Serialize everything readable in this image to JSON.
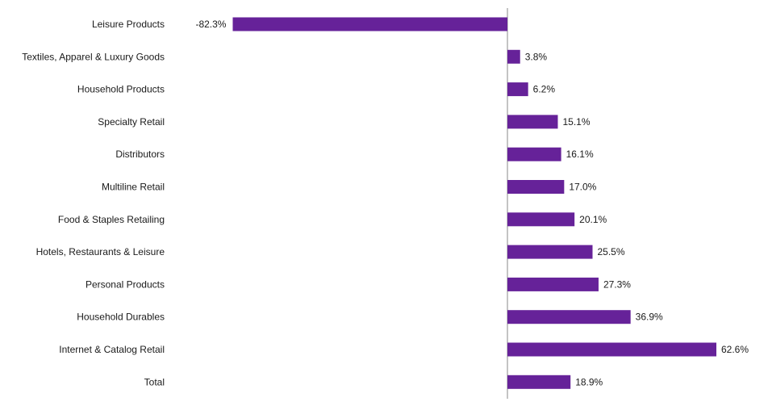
{
  "chart_data": {
    "type": "bar",
    "orientation": "horizontal",
    "title": "",
    "xlabel": "",
    "ylabel": "",
    "categories": [
      "Leisure Products",
      "Textiles, Apparel & Luxury Goods",
      "Household Products",
      "Specialty Retail",
      "Distributors",
      "Multiline Retail",
      "Food & Staples Retailing",
      "Hotels, Restaurants  & Leisure",
      "Personal Products",
      "Household Durables",
      "Internet & Catalog  Retail",
      "Total"
    ],
    "values": [
      -82.3,
      3.8,
      6.2,
      15.1,
      16.1,
      17.0,
      20.1,
      25.5,
      27.3,
      36.9,
      62.6,
      18.9
    ],
    "data_labels": [
      "-82.3%",
      "3.8%",
      "6.2%",
      "15.1%",
      "16.1%",
      "17.0%",
      "20.1%",
      "25.5%",
      "27.3%",
      "36.9%",
      "62.6%",
      "18.9%"
    ],
    "unit": "%",
    "bar_color": "#662299",
    "axis_color": "#8a8a8a",
    "grid": false,
    "legend": "none"
  }
}
